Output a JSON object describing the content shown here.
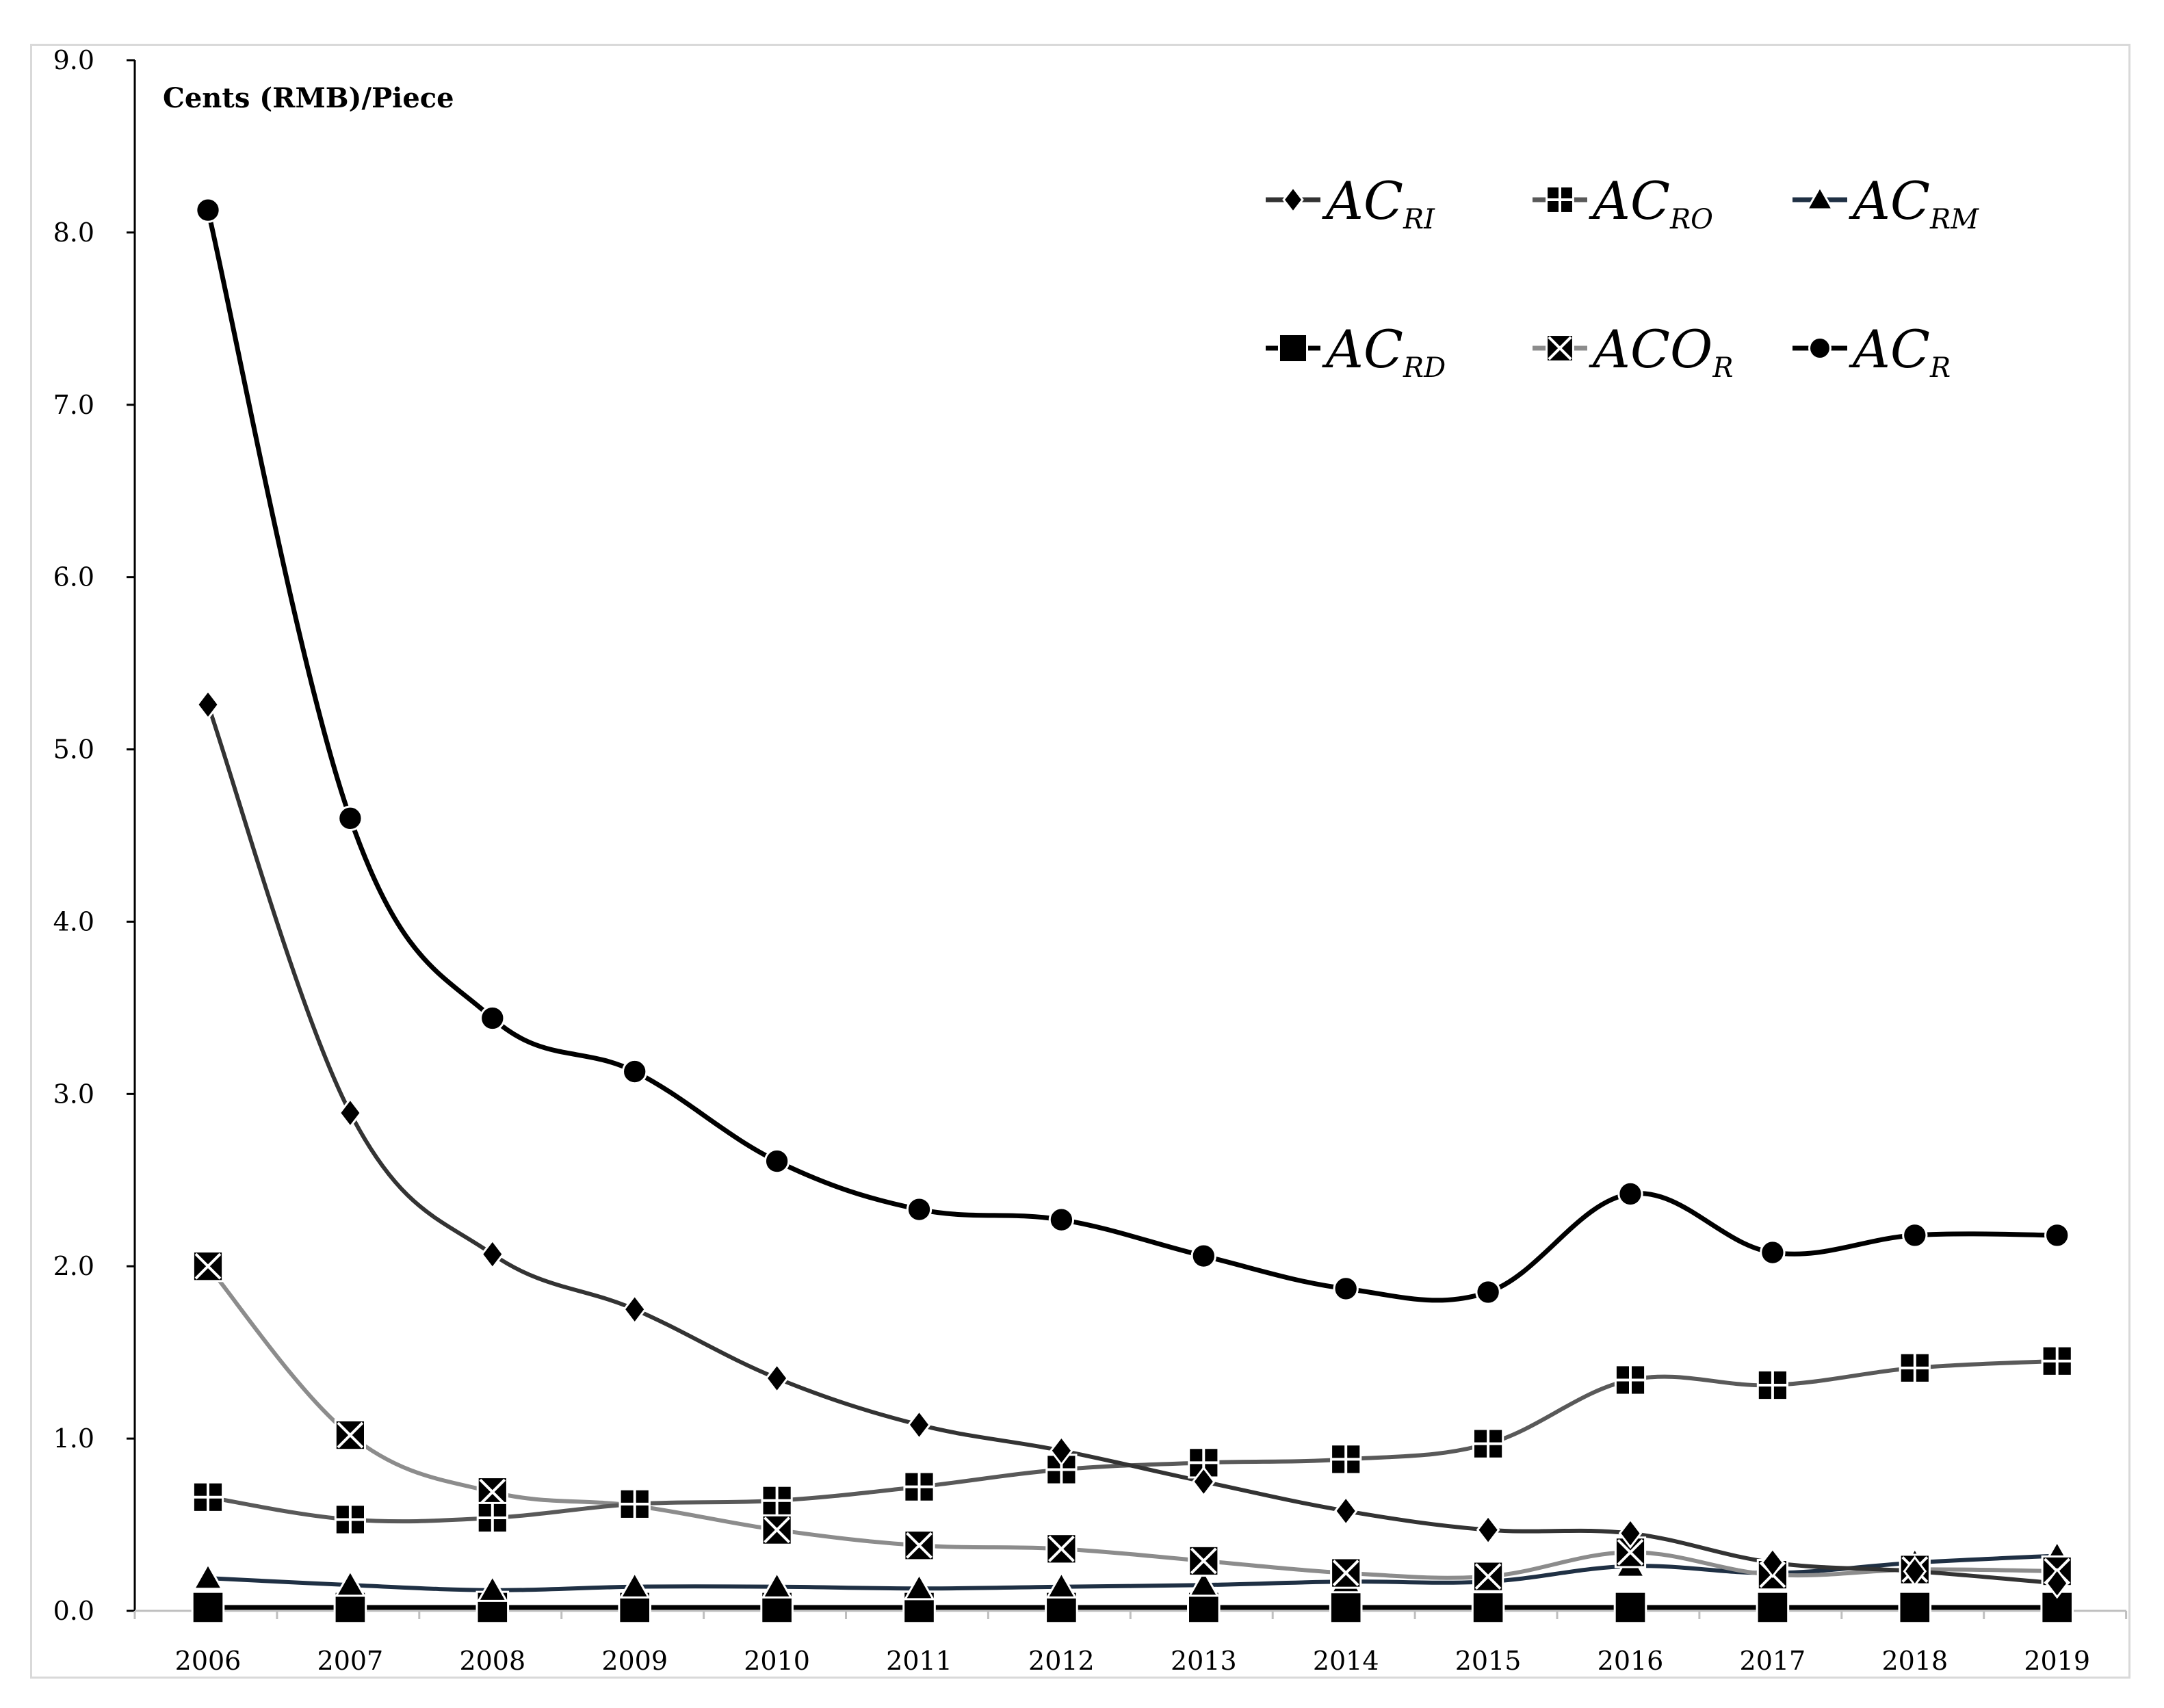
{
  "chart_data": {
    "type": "line",
    "unit_label": "Cents (RMB)/Piece",
    "ylim": [
      0,
      9
    ],
    "y_ticks": [
      "0.0",
      "1.0",
      "2.0",
      "3.0",
      "4.0",
      "5.0",
      "6.0",
      "7.0",
      "8.0",
      "9.0"
    ],
    "categories": [
      "2006",
      "2007",
      "2008",
      "2009",
      "2010",
      "2011",
      "2012",
      "2013",
      "2014",
      "2015",
      "2016",
      "2017",
      "2018",
      "2019"
    ],
    "grid": false,
    "legend_position": "top-right",
    "series": [
      {
        "name": "AC",
        "subscript": "RI",
        "marker": "diamond",
        "color": "#333333",
        "values": [
          5.26,
          2.89,
          2.07,
          1.75,
          1.35,
          1.08,
          0.93,
          0.75,
          0.58,
          0.47,
          0.45,
          0.28,
          0.23,
          0.16
        ]
      },
      {
        "name": "AC",
        "subscript": "RO",
        "marker": "square-cross",
        "color": "#595959",
        "values": [
          0.66,
          0.53,
          0.54,
          0.62,
          0.64,
          0.72,
          0.82,
          0.86,
          0.88,
          0.97,
          1.34,
          1.31,
          1.41,
          1.45
        ]
      },
      {
        "name": "AC",
        "subscript": "RM",
        "marker": "triangle",
        "color": "#1f3044",
        "values": [
          0.19,
          0.15,
          0.12,
          0.14,
          0.14,
          0.13,
          0.14,
          0.15,
          0.17,
          0.17,
          0.26,
          0.22,
          0.28,
          0.32
        ]
      },
      {
        "name": "AC",
        "subscript": "RD",
        "marker": "square",
        "color": "#000000",
        "values": [
          0.02,
          0.02,
          0.02,
          0.02,
          0.02,
          0.02,
          0.02,
          0.02,
          0.02,
          0.02,
          0.02,
          0.02,
          0.02,
          0.02
        ]
      },
      {
        "name": "ACO",
        "subscript": "R",
        "marker": "square-x",
        "color": "#8c8c8c",
        "values": [
          2.0,
          1.02,
          0.69,
          0.61,
          0.47,
          0.38,
          0.36,
          0.29,
          0.22,
          0.2,
          0.34,
          0.21,
          0.24,
          0.23
        ]
      },
      {
        "name": "AC",
        "subscript": "R",
        "marker": "circle",
        "color": "#000000",
        "values": [
          8.13,
          4.6,
          3.44,
          3.13,
          2.61,
          2.33,
          2.27,
          2.06,
          1.87,
          1.85,
          2.42,
          2.08,
          2.18,
          2.18
        ]
      }
    ]
  }
}
